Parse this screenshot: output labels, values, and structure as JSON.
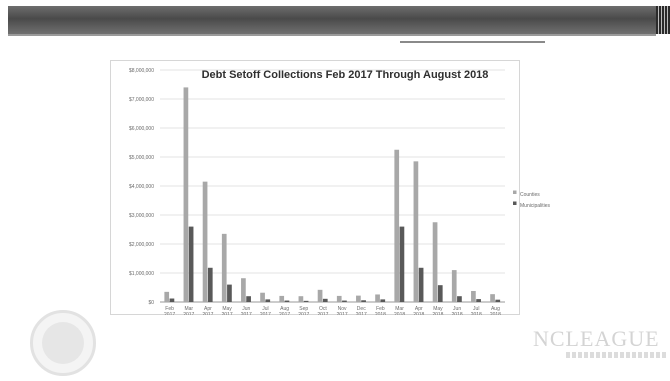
{
  "logo_text": "NCLEAGUE",
  "chart_data": {
    "type": "bar",
    "title": "Debt Setoff Collections Feb 2017 Through August 2018",
    "categories": [
      [
        "Feb",
        "2017"
      ],
      [
        "Mar",
        "2017"
      ],
      [
        "Apr",
        "2017"
      ],
      [
        "May",
        "2017"
      ],
      [
        "Jun",
        "2017"
      ],
      [
        "Jul",
        "2017"
      ],
      [
        "Aug",
        "2017"
      ],
      [
        "Sep",
        "2017"
      ],
      [
        "Oct",
        "2017"
      ],
      [
        "Nov",
        "2017"
      ],
      [
        "Dec",
        "2017"
      ],
      [
        "Feb",
        "2018"
      ],
      [
        "Mar",
        "2018"
      ],
      [
        "Apr",
        "2018"
      ],
      [
        "May",
        "2018"
      ],
      [
        "Jun",
        "2018"
      ],
      [
        "Jul",
        "2018"
      ],
      [
        "Aug",
        "2018"
      ]
    ],
    "ylim": [
      0,
      8000000
    ],
    "yticks": [
      "$0",
      "$1,000,000",
      "$2,000,000",
      "$3,000,000",
      "$4,000,000",
      "$5,000,000",
      "$6,000,000",
      "$7,000,000",
      "$8,000,000"
    ],
    "series": [
      {
        "name": "Counties",
        "color": "#a8a8a8",
        "values": [
          350000,
          7400000,
          4150000,
          2350000,
          820000,
          320000,
          210000,
          200000,
          420000,
          210000,
          220000,
          260000,
          5250000,
          4850000,
          2750000,
          1100000,
          380000,
          270000
        ]
      },
      {
        "name": "Municipalities",
        "color": "#595959",
        "values": [
          120000,
          2600000,
          1180000,
          600000,
          200000,
          90000,
          50000,
          40000,
          110000,
          50000,
          60000,
          90000,
          2600000,
          1180000,
          580000,
          200000,
          100000,
          80000
        ]
      }
    ],
    "legend": "right",
    "grid": true
  }
}
